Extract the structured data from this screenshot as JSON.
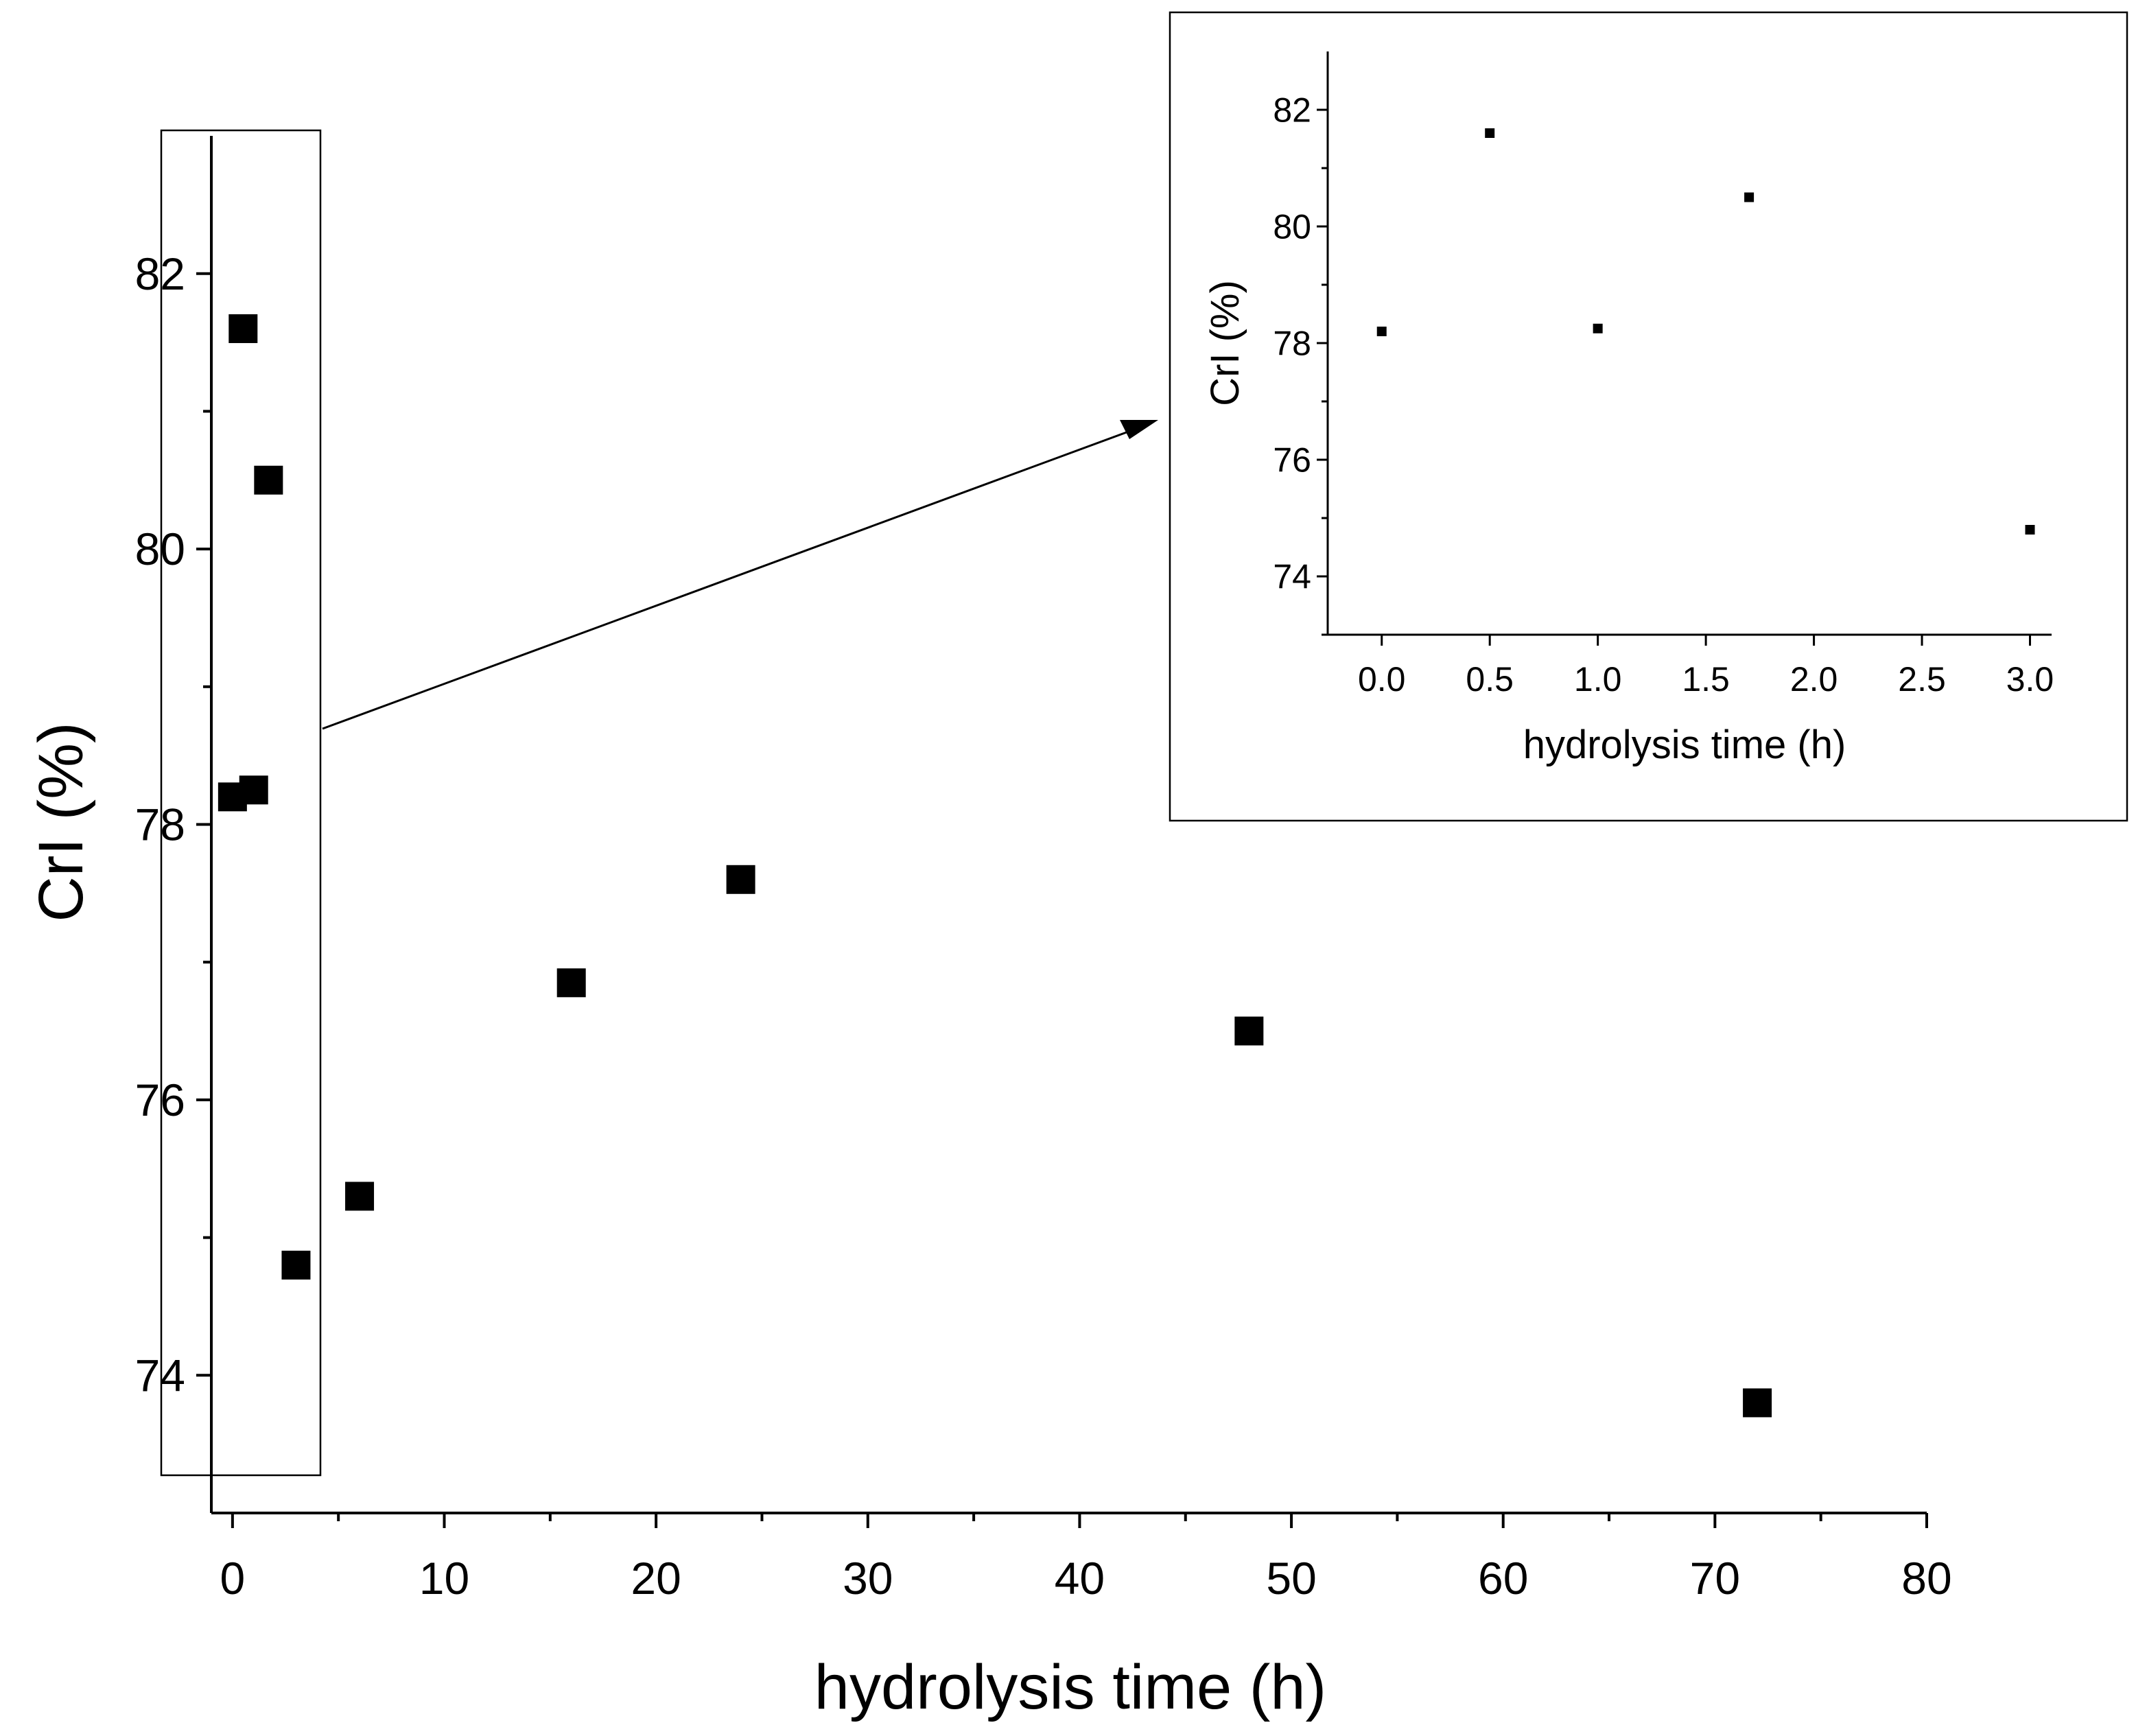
{
  "chart_data": [
    {
      "type": "scatter",
      "title": "",
      "xlabel": "hydrolysis time (h)",
      "ylabel": "CrI (%)",
      "xlim": [
        -1,
        80
      ],
      "ylim": [
        73.0,
        83.0
      ],
      "xticks": [
        0,
        10,
        20,
        30,
        40,
        50,
        60,
        70,
        80
      ],
      "yticks": [
        74,
        76,
        78,
        80,
        82
      ],
      "grid": false,
      "marker": "square",
      "color": "#000000",
      "series": [
        {
          "x": [
            0,
            0.5,
            1,
            1.7,
            3,
            6,
            16,
            24,
            48,
            72
          ],
          "y": [
            78.2,
            81.6,
            78.25,
            80.5,
            74.8,
            75.3,
            76.85,
            77.6,
            76.5,
            73.8
          ]
        }
      ]
    },
    {
      "type": "scatter",
      "title": "",
      "xlabel": "hydrolysis time (h)",
      "ylabel": "CrI (%)",
      "xlim": [
        -0.25,
        3.1
      ],
      "ylim": [
        73.0,
        83.0
      ],
      "xticks": [
        "0.0",
        "0.5",
        "1.0",
        "1.5",
        "2.0",
        "2.5",
        "3.0"
      ],
      "yticks": [
        74,
        76,
        78,
        80,
        82
      ],
      "grid": false,
      "marker": "square",
      "color": "#000000",
      "series": [
        {
          "x": [
            0,
            0.5,
            1,
            1.7,
            3
          ],
          "y": [
            78.2,
            81.6,
            78.25,
            80.5,
            74.8
          ]
        }
      ]
    }
  ]
}
